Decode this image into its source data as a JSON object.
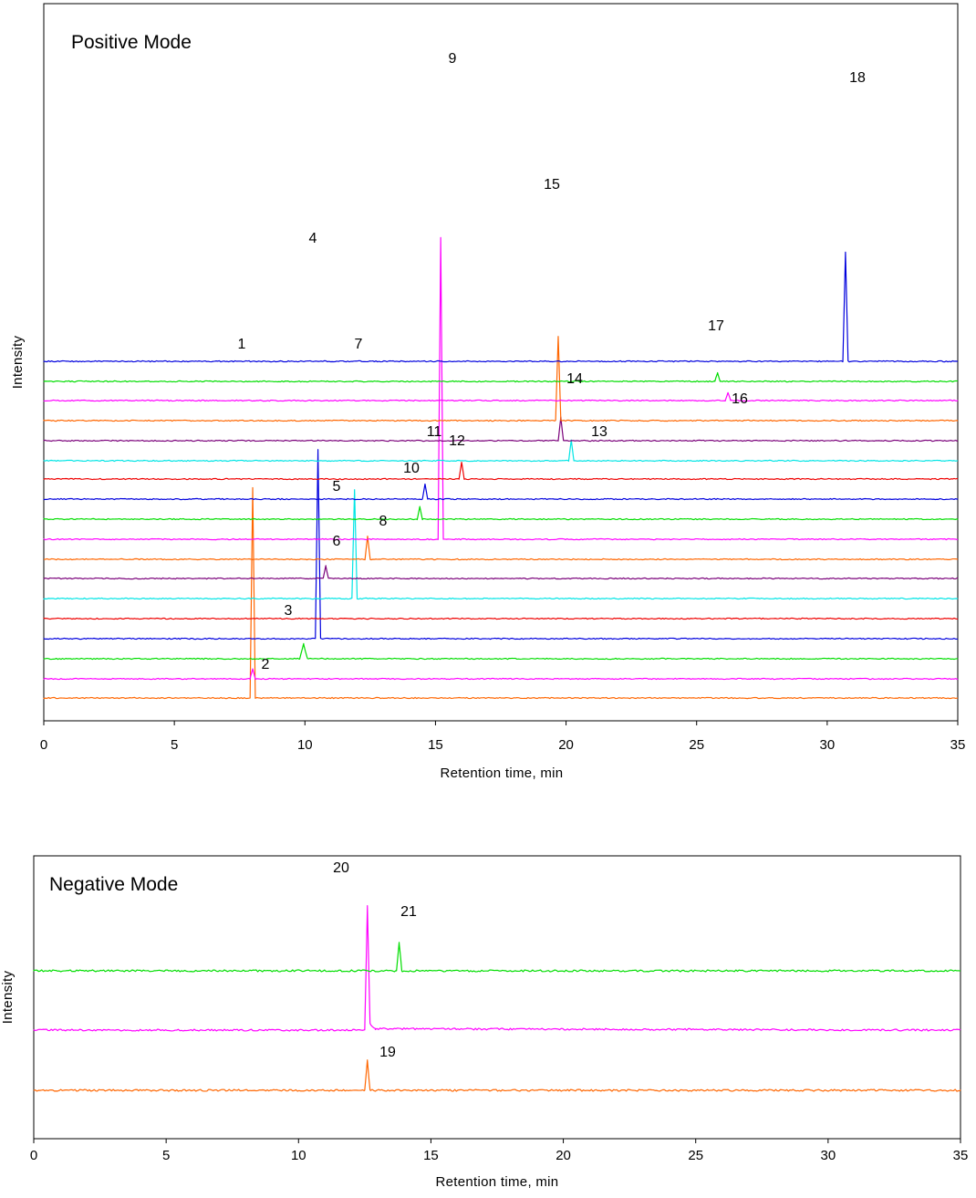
{
  "chart_data": [
    {
      "type": "line",
      "title": "Positive Mode",
      "xlabel": "Retention time, min",
      "ylabel": "Intensity",
      "xlim": [
        0,
        35
      ],
      "xticks": [
        0,
        5,
        10,
        15,
        20,
        25,
        30,
        35
      ],
      "xtick_labels": [
        "0",
        "5",
        "10",
        "15",
        "20",
        "25",
        "30",
        "35"
      ],
      "grid": false,
      "legend": "none",
      "y_scale": "stacked chromatogram traces (offset baselines, relative intensity)",
      "series": [
        {
          "color": "#ff6600",
          "values": [
            [
              0,
              0
            ],
            [
              7.9,
              0
            ],
            [
              8.0,
              100
            ],
            [
              8.1,
              0
            ],
            [
              35,
              0
            ]
          ]
        },
        {
          "color": "#ff00ff",
          "values": [
            [
              0,
              0
            ],
            [
              7.9,
              0
            ],
            [
              8.0,
              5
            ],
            [
              8.1,
              0
            ],
            [
              35,
              0
            ]
          ]
        },
        {
          "color": "#00dd00",
          "values": [
            [
              0,
              0
            ],
            [
              9.8,
              0
            ],
            [
              9.95,
              7
            ],
            [
              10.1,
              0
            ],
            [
              35,
              0
            ]
          ]
        },
        {
          "color": "#0000dd",
          "values": [
            [
              0,
              0
            ],
            [
              10.4,
              0
            ],
            [
              10.5,
              90
            ],
            [
              10.6,
              0
            ],
            [
              35,
              0
            ]
          ]
        },
        {
          "color": "#ee0000",
          "values": [
            [
              0,
              0
            ],
            [
              35,
              0
            ]
          ]
        },
        {
          "color": "#00e5e5",
          "values": [
            [
              0,
              0
            ],
            [
              11.8,
              0
            ],
            [
              11.9,
              52
            ],
            [
              12.0,
              0
            ],
            [
              35,
              0
            ]
          ]
        },
        {
          "color": "#7a007a",
          "values": [
            [
              0,
              0
            ],
            [
              10.7,
              0
            ],
            [
              10.8,
              6
            ],
            [
              10.9,
              0
            ],
            [
              35,
              0
            ]
          ]
        },
        {
          "color": "#ff6600",
          "values": [
            [
              0,
              0
            ],
            [
              12.3,
              0
            ],
            [
              12.4,
              11
            ],
            [
              12.5,
              0
            ],
            [
              35,
              0
            ]
          ]
        },
        {
          "color": "#ff00ff",
          "values": [
            [
              0,
              0
            ],
            [
              15.1,
              0
            ],
            [
              15.2,
              144
            ],
            [
              15.3,
              0
            ],
            [
              35,
              0
            ]
          ]
        },
        {
          "color": "#00dd00",
          "values": [
            [
              0,
              0
            ],
            [
              14.3,
              0
            ],
            [
              14.4,
              6
            ],
            [
              14.5,
              0
            ],
            [
              35,
              0
            ]
          ]
        },
        {
          "color": "#0000dd",
          "values": [
            [
              0,
              0
            ],
            [
              14.5,
              0
            ],
            [
              14.6,
              7
            ],
            [
              14.7,
              0
            ],
            [
              35,
              0
            ]
          ]
        },
        {
          "color": "#ee0000",
          "values": [
            [
              0,
              0
            ],
            [
              15.9,
              0
            ],
            [
              16.0,
              8
            ],
            [
              16.1,
              0
            ],
            [
              35,
              0
            ]
          ]
        },
        {
          "color": "#00e5e5",
          "values": [
            [
              0,
              0
            ],
            [
              20.1,
              0
            ],
            [
              20.2,
              10
            ],
            [
              20.3,
              0
            ],
            [
              35,
              0
            ]
          ]
        },
        {
          "color": "#7a007a",
          "values": [
            [
              0,
              0
            ],
            [
              19.7,
              0
            ],
            [
              19.8,
              11
            ],
            [
              19.9,
              0
            ],
            [
              35,
              0
            ]
          ]
        },
        {
          "color": "#ff6600",
          "values": [
            [
              0,
              0
            ],
            [
              19.6,
              0
            ],
            [
              19.7,
              40
            ],
            [
              19.8,
              0
            ],
            [
              35,
              0
            ]
          ]
        },
        {
          "color": "#ff00ff",
          "values": [
            [
              0,
              0
            ],
            [
              26.1,
              0
            ],
            [
              26.2,
              4
            ],
            [
              26.3,
              0
            ],
            [
              35,
              0
            ]
          ]
        },
        {
          "color": "#00dd00",
          "values": [
            [
              0,
              0
            ],
            [
              25.7,
              0
            ],
            [
              25.8,
              4
            ],
            [
              25.9,
              0
            ],
            [
              35,
              0
            ]
          ]
        },
        {
          "color": "#0000dd",
          "values": [
            [
              0,
              0
            ],
            [
              30.6,
              0
            ],
            [
              30.7,
              52
            ],
            [
              30.8,
              0
            ],
            [
              35,
              0
            ]
          ]
        }
      ],
      "peak_labels": [
        {
          "text": "1",
          "x": 7.5
        },
        {
          "text": "2",
          "x": 8.4
        },
        {
          "text": "3",
          "x": 9.3
        },
        {
          "text": "4",
          "x": 10.3
        },
        {
          "text": "5",
          "x": 11.1
        },
        {
          "text": "6",
          "x": 11.1
        },
        {
          "text": "7",
          "x": 12.0
        },
        {
          "text": "8",
          "x": 12.8
        },
        {
          "text": "9",
          "x": 15.4
        },
        {
          "text": "10",
          "x": 14.0
        },
        {
          "text": "11",
          "x": 14.4
        },
        {
          "text": "12",
          "x": 15.8
        },
        {
          "text": "13",
          "x": 21.2
        },
        {
          "text": "14",
          "x": 20.4
        },
        {
          "text": "15",
          "x": 19.5
        },
        {
          "text": "16",
          "x": 26.8
        },
        {
          "text": "17",
          "x": 25.8
        },
        {
          "text": "18",
          "x": 31.0
        }
      ]
    },
    {
      "type": "line",
      "title": "Negative Mode",
      "xlabel": "Retention time, min",
      "ylabel": "Intensity",
      "xlim": [
        0,
        35
      ],
      "xticks": [
        0,
        5,
        10,
        15,
        20,
        25,
        30,
        35
      ],
      "xtick_labels": [
        "0",
        "5",
        "10",
        "15",
        "20",
        "25",
        "30",
        "35"
      ],
      "grid": false,
      "legend": "none",
      "y_scale": "stacked chromatogram traces (offset baselines, relative intensity)",
      "series": [
        {
          "color": "#ff6600",
          "values": [
            [
              0,
              0
            ],
            [
              12.5,
              0
            ],
            [
              12.6,
              45
            ],
            [
              12.7,
              0
            ],
            [
              35,
              0
            ]
          ]
        },
        {
          "color": "#ff00ff",
          "values": [
            [
              0,
              0
            ],
            [
              12.5,
              0
            ],
            [
              12.6,
              186
            ],
            [
              12.7,
              10
            ],
            [
              12.9,
              2
            ],
            [
              35,
              0
            ]
          ]
        },
        {
          "color": "#00dd00",
          "values": [
            [
              0,
              0
            ],
            [
              13.7,
              0
            ],
            [
              13.8,
              42
            ],
            [
              13.9,
              0
            ],
            [
              35,
              0
            ]
          ]
        }
      ],
      "peak_labels": [
        {
          "text": "19",
          "x": 13.3
        },
        {
          "text": "20",
          "x": 11.6
        },
        {
          "text": "21",
          "x": 14.3
        }
      ]
    }
  ]
}
